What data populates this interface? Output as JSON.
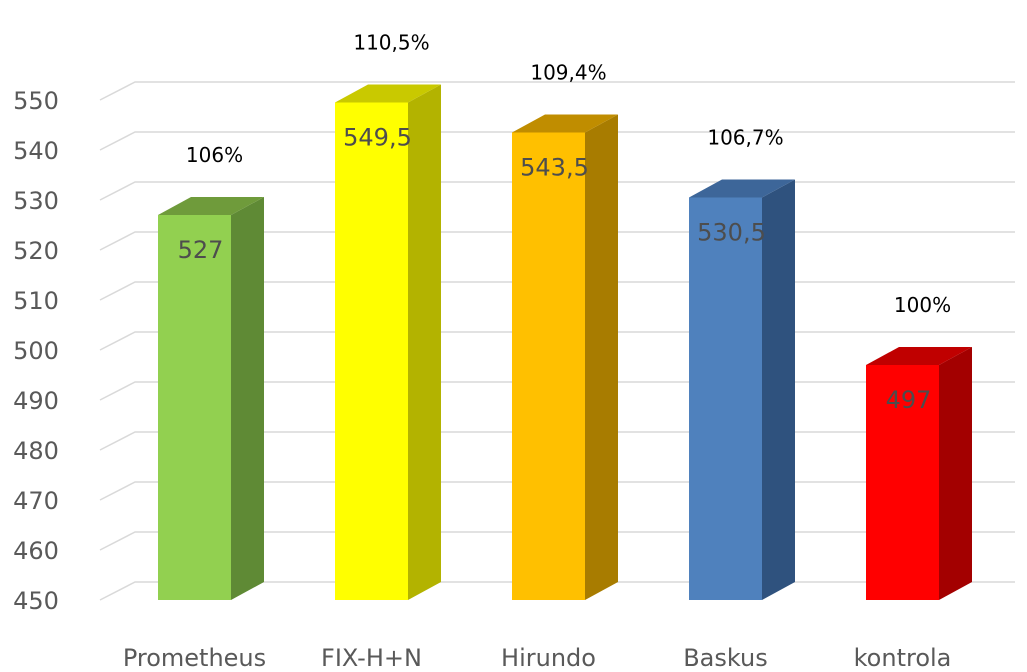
{
  "chart_data": {
    "type": "bar",
    "title": "",
    "xlabel": "",
    "ylabel": "",
    "categories": [
      "Prometheus",
      "FIX-H+N",
      "Hirundo",
      "Baskus",
      "kontrola"
    ],
    "values": [
      527,
      549.5,
      543.5,
      530.5,
      497
    ],
    "value_labels": [
      "527",
      "549,5",
      "543,5",
      "530,5",
      "497"
    ],
    "percent_labels": [
      "106%",
      "110,5%",
      "109,4%",
      "106,7%",
      "100%"
    ],
    "ylim": [
      450,
      550
    ],
    "yticks": [
      450,
      460,
      470,
      480,
      490,
      500,
      510,
      520,
      530,
      540,
      550
    ],
    "grid": true,
    "legend": "none",
    "style": "3d-columns",
    "colors": [
      {
        "front": "#92d050",
        "side": "#5f8a35",
        "top": "#6f9b3b"
      },
      {
        "front": "#ffff00",
        "side": "#b3b300",
        "top": "#c9c900"
      },
      {
        "front": "#ffc000",
        "side": "#a87c00",
        "top": "#c08d00"
      },
      {
        "front": "#4f81bd",
        "side": "#2f527e",
        "top": "#3d6699"
      },
      {
        "front": "#ff0000",
        "side": "#a30000",
        "top": "#c00000"
      }
    ]
  }
}
